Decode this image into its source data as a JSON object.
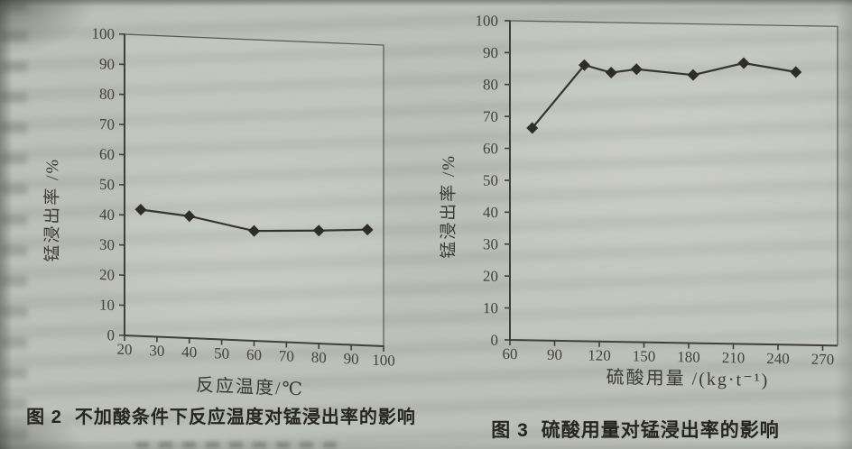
{
  "page": {
    "kind": "scanned journal figure panel",
    "paper_color": "#bdc0b8",
    "ink_color": "#36352f",
    "axis_color": "#403f39",
    "tick_label_color": "#434239",
    "caption_color": "#262521"
  },
  "figures": [
    {
      "caption_label": "图 2",
      "caption_text": "不加酸条件下反应温度对锰浸出率的影响"
    },
    {
      "caption_label": "图 3",
      "caption_text": "硫酸用量对锰浸出率的影响"
    }
  ],
  "chart_data": [
    {
      "type": "line",
      "title": "图 2  不加酸条件下反应温度对锰浸出率的影响",
      "xlabel": "反应温度/℃",
      "ylabel": "锰浸出率 /%",
      "xlim": [
        20,
        100
      ],
      "ylim": [
        0,
        100
      ],
      "xticks": [
        20,
        30,
        40,
        50,
        60,
        70,
        80,
        90,
        100
      ],
      "yticks": [
        0,
        10,
        20,
        30,
        40,
        50,
        60,
        70,
        80,
        90,
        100
      ],
      "grid": false,
      "legend": "none",
      "marker": "diamond",
      "series": [
        {
          "name": "锰浸出率",
          "x": [
            25,
            40,
            60,
            80,
            95
          ],
          "y": [
            42,
            40.5,
            36.5,
            37.5,
            38.5
          ]
        }
      ]
    },
    {
      "type": "line",
      "title": "图 3  硫酸用量对锰浸出率的影响",
      "xlabel": "硫酸用量 /(kg·t⁻¹)",
      "ylabel": "锰浸出率 /%",
      "xlim": [
        60,
        280
      ],
      "ylim": [
        0,
        100
      ],
      "xticks": [
        60,
        90,
        120,
        150,
        180,
        210,
        240,
        270
      ],
      "yticks": [
        0,
        10,
        20,
        30,
        40,
        50,
        60,
        70,
        80,
        90,
        100
      ],
      "grid": false,
      "legend": "none",
      "marker": "diamond",
      "series": [
        {
          "name": "锰浸出率",
          "x": [
            75,
            110,
            128,
            145,
            183,
            217,
            252
          ],
          "y": [
            66.5,
            86.5,
            84.3,
            85.5,
            84,
            88,
            85.5
          ]
        }
      ]
    }
  ]
}
